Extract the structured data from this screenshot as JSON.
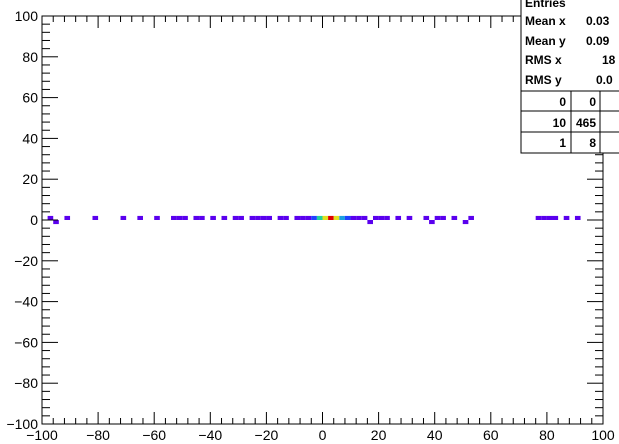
{
  "chart_data": {
    "type": "heatmap",
    "title": "",
    "xlabel": "",
    "ylabel": "",
    "xlim": [
      -100,
      100
    ],
    "ylim": [
      -100,
      100
    ],
    "x_ticks": [
      -100,
      -80,
      -60,
      -40,
      -20,
      0,
      20,
      40,
      60,
      80,
      100
    ],
    "y_ticks": [
      -100,
      -80,
      -60,
      -40,
      -20,
      0,
      20,
      40,
      60,
      80,
      100
    ],
    "x_tick_labels": [
      "−100",
      "−80",
      "−60",
      "−40",
      "−20",
      "0",
      "20",
      "40",
      "60",
      "80",
      "100"
    ],
    "y_tick_labels": [
      "−100",
      "−80",
      "−60",
      "−40",
      "−20",
      "0",
      "20",
      "40",
      "60",
      "80",
      "100"
    ],
    "bin_width": 2,
    "cells": [
      {
        "x": -98,
        "y": 0,
        "level": 1
      },
      {
        "x": -96,
        "y": -2,
        "level": 1
      },
      {
        "x": -92,
        "y": 0,
        "level": 1
      },
      {
        "x": -82,
        "y": 0,
        "level": 1
      },
      {
        "x": -72,
        "y": 0,
        "level": 1
      },
      {
        "x": -66,
        "y": 0,
        "level": 1
      },
      {
        "x": -60,
        "y": 0,
        "level": 1
      },
      {
        "x": -54,
        "y": 0,
        "level": 1
      },
      {
        "x": -52,
        "y": 0,
        "level": 1
      },
      {
        "x": -50,
        "y": 0,
        "level": 1
      },
      {
        "x": -46,
        "y": 0,
        "level": 1
      },
      {
        "x": -44,
        "y": 0,
        "level": 1
      },
      {
        "x": -40,
        "y": 0,
        "level": 1
      },
      {
        "x": -36,
        "y": 0,
        "level": 1
      },
      {
        "x": -32,
        "y": 0,
        "level": 1
      },
      {
        "x": -30,
        "y": 0,
        "level": 1
      },
      {
        "x": -26,
        "y": 0,
        "level": 1
      },
      {
        "x": -24,
        "y": 0,
        "level": 1
      },
      {
        "x": -22,
        "y": 0,
        "level": 1
      },
      {
        "x": -20,
        "y": 0,
        "level": 1
      },
      {
        "x": -16,
        "y": 0,
        "level": 1
      },
      {
        "x": -14,
        "y": 0,
        "level": 1
      },
      {
        "x": -10,
        "y": 0,
        "level": 1
      },
      {
        "x": -8,
        "y": 0,
        "level": 1
      },
      {
        "x": -6,
        "y": 0,
        "level": 1
      },
      {
        "x": -4,
        "y": 0,
        "level": 2
      },
      {
        "x": -2,
        "y": 0,
        "level": 4
      },
      {
        "x": 0,
        "y": 0,
        "level": 6
      },
      {
        "x": 2,
        "y": 0,
        "level": 10
      },
      {
        "x": 4,
        "y": 0,
        "level": 6
      },
      {
        "x": 6,
        "y": 0,
        "level": 3
      },
      {
        "x": 8,
        "y": 0,
        "level": 2
      },
      {
        "x": 10,
        "y": 0,
        "level": 1
      },
      {
        "x": 12,
        "y": 0,
        "level": 1
      },
      {
        "x": 14,
        "y": 0,
        "level": 1
      },
      {
        "x": 16,
        "y": -2,
        "level": 1
      },
      {
        "x": 18,
        "y": 0,
        "level": 1
      },
      {
        "x": 20,
        "y": 0,
        "level": 1
      },
      {
        "x": 22,
        "y": 0,
        "level": 1
      },
      {
        "x": 26,
        "y": 0,
        "level": 1
      },
      {
        "x": 30,
        "y": 0,
        "level": 1
      },
      {
        "x": 36,
        "y": 0,
        "level": 1
      },
      {
        "x": 38,
        "y": -2,
        "level": 1
      },
      {
        "x": 40,
        "y": 0,
        "level": 1
      },
      {
        "x": 42,
        "y": 0,
        "level": 1
      },
      {
        "x": 46,
        "y": 0,
        "level": 1
      },
      {
        "x": 50,
        "y": -2,
        "level": 1
      },
      {
        "x": 52,
        "y": 0,
        "level": 1
      },
      {
        "x": 76,
        "y": 0,
        "level": 1
      },
      {
        "x": 78,
        "y": 0,
        "level": 1
      },
      {
        "x": 80,
        "y": 0,
        "level": 1
      },
      {
        "x": 82,
        "y": 0,
        "level": 1
      },
      {
        "x": 86,
        "y": 0,
        "level": 1
      },
      {
        "x": 90,
        "y": 0,
        "level": 1
      }
    ],
    "palette": [
      "#5a00ee",
      "#2040ff",
      "#1aa0e0",
      "#20d0a0",
      "#80e040",
      "#e0e020",
      "#f0c000",
      "#ff9000",
      "#ff5000",
      "#e00000"
    ]
  },
  "stats": {
    "rows": [
      {
        "label": "Entries",
        "value": ""
      },
      {
        "label": "Mean x",
        "value": "0.03"
      },
      {
        "label": "Mean y",
        "value": "0.09"
      },
      {
        "label": "RMS x",
        "value": "18"
      },
      {
        "label": "RMS y",
        "value": "0.0"
      }
    ],
    "grid": [
      [
        "0",
        "0"
      ],
      [
        "10",
        "465"
      ],
      [
        "1",
        "8"
      ]
    ]
  }
}
